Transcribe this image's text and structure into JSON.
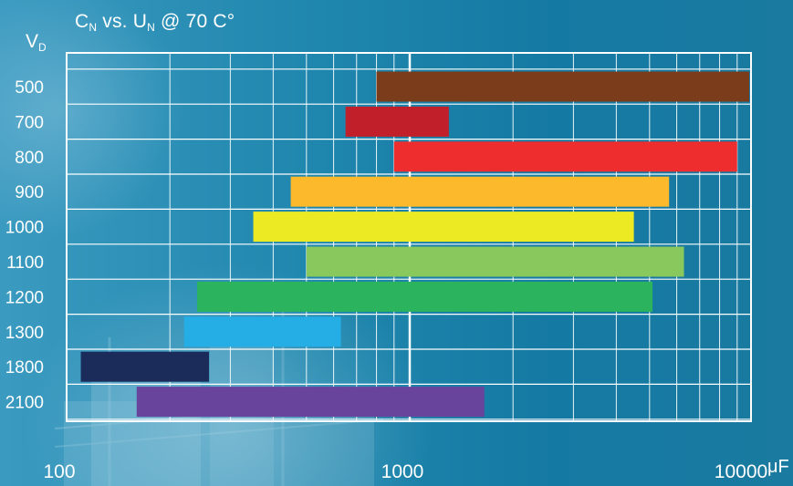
{
  "chart_data": {
    "type": "bar",
    "orientation": "horizontal-range",
    "title": {
      "c_main": "C",
      "c_sub": "N",
      "mid": " vs. U",
      "u_sub": "N",
      "rest": " @ 70  C°"
    },
    "ylabel": {
      "main": "V",
      "sub": "D"
    },
    "xscale": "log",
    "xlim": [
      100,
      12000
    ],
    "x_ticks": [
      {
        "value": 100,
        "label": "100"
      },
      {
        "value": 1000,
        "label": "1000"
      },
      {
        "value": 10000,
        "label": "10000"
      }
    ],
    "x_unit": "μF",
    "grid": true,
    "categories": [
      "500",
      "700",
      "800",
      "900",
      "1000",
      "1100",
      "1200",
      "1300",
      "1800",
      "2100"
    ],
    "ranges": [
      {
        "category": "500",
        "min": 800,
        "max": 12000,
        "color": "#7a3c1a"
      },
      {
        "category": "700",
        "min": 650,
        "max": 1300,
        "color": "#c1202b"
      },
      {
        "category": "800",
        "min": 900,
        "max": 9000,
        "color": "#ee2d2f"
      },
      {
        "category": "900",
        "min": 450,
        "max": 5700,
        "color": "#fbb92b"
      },
      {
        "category": "1000",
        "min": 350,
        "max": 4500,
        "color": "#ecea23"
      },
      {
        "category": "1100",
        "min": 500,
        "max": 6300,
        "color": "#88c85c"
      },
      {
        "category": "1200",
        "min": 240,
        "max": 5100,
        "color": "#2bb35e"
      },
      {
        "category": "1300",
        "min": 220,
        "max": 630,
        "color": "#25aee6"
      },
      {
        "category": "1800",
        "min": 110,
        "max": 260,
        "color": "#1b2c5b"
      },
      {
        "category": "2100",
        "min": 160,
        "max": 1650,
        "color": "#68449c"
      }
    ]
  }
}
